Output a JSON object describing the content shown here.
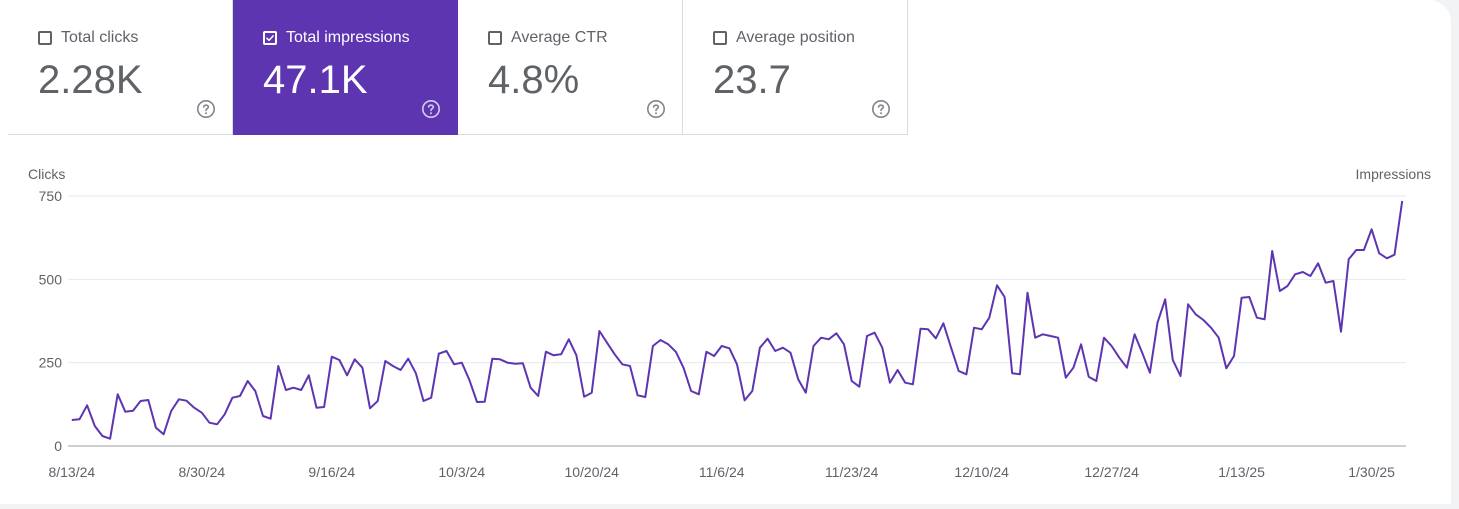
{
  "metrics": [
    {
      "label": "Total clicks",
      "value": "2.28K",
      "checked": false
    },
    {
      "label": "Total impressions",
      "value": "47.1K",
      "checked": true
    },
    {
      "label": "Average CTR",
      "value": "4.8%",
      "checked": false
    },
    {
      "label": "Average position",
      "value": "23.7",
      "checked": false
    }
  ],
  "colors": {
    "accent": "#5e35b1",
    "line": "#5e35b1",
    "grid": "#e8eaed",
    "text": "#5f6368"
  },
  "icons": {
    "checkbox": "checkbox-icon",
    "help": "help-circle-icon"
  },
  "chart_data": {
    "type": "line",
    "left_axis_label": "Clicks",
    "right_axis_label": "Impressions",
    "ylim": [
      0,
      750
    ],
    "yticks": [
      0,
      250,
      500,
      750
    ],
    "grid": true,
    "x_tick_labels": [
      "8/13/24",
      "8/30/24",
      "9/16/24",
      "10/3/24",
      "10/20/24",
      "11/6/24",
      "11/23/24",
      "12/10/24",
      "12/27/24",
      "1/13/25",
      "1/30/25"
    ],
    "x_tick_indices": [
      0,
      17,
      34,
      51,
      68,
      85,
      102,
      119,
      136,
      153,
      170
    ],
    "series": [
      {
        "values": [
          78,
          80,
          122,
          60,
          30,
          22,
          155,
          103,
          106,
          135,
          138,
          55,
          35,
          105,
          140,
          136,
          115,
          100,
          70,
          65,
          95,
          145,
          150,
          195,
          165,
          90,
          82,
          240,
          168,
          175,
          168,
          212,
          115,
          117,
          268,
          258,
          212,
          260,
          235,
          113,
          135,
          255,
          240,
          228,
          262,
          218,
          135,
          145,
          277,
          285,
          245,
          250,
          198,
          132,
          133,
          262,
          260,
          250,
          247,
          248,
          175,
          150,
          283,
          272,
          275,
          320,
          272,
          148,
          160,
          345,
          310,
          275,
          245,
          240,
          152,
          147,
          300,
          318,
          305,
          283,
          235,
          165,
          155,
          283,
          270,
          300,
          293,
          245,
          137,
          165,
          295,
          322,
          285,
          295,
          280,
          200,
          160,
          300,
          325,
          320,
          338,
          305,
          195,
          178,
          330,
          340,
          295,
          190,
          228,
          190,
          185,
          352,
          350,
          323,
          368,
          295,
          225,
          215,
          355,
          350,
          385,
          482,
          447,
          218,
          215,
          460,
          325,
          335,
          330,
          325,
          205,
          235,
          305,
          208,
          195,
          325,
          300,
          265,
          235,
          335,
          280,
          220,
          370,
          440,
          258,
          210,
          425,
          395,
          378,
          355,
          325,
          233,
          270,
          445,
          447,
          385,
          380,
          585,
          465,
          480,
          515,
          522,
          510,
          548,
          490,
          495,
          343,
          560,
          588,
          588,
          650,
          578,
          563,
          574,
          735
        ]
      }
    ]
  }
}
